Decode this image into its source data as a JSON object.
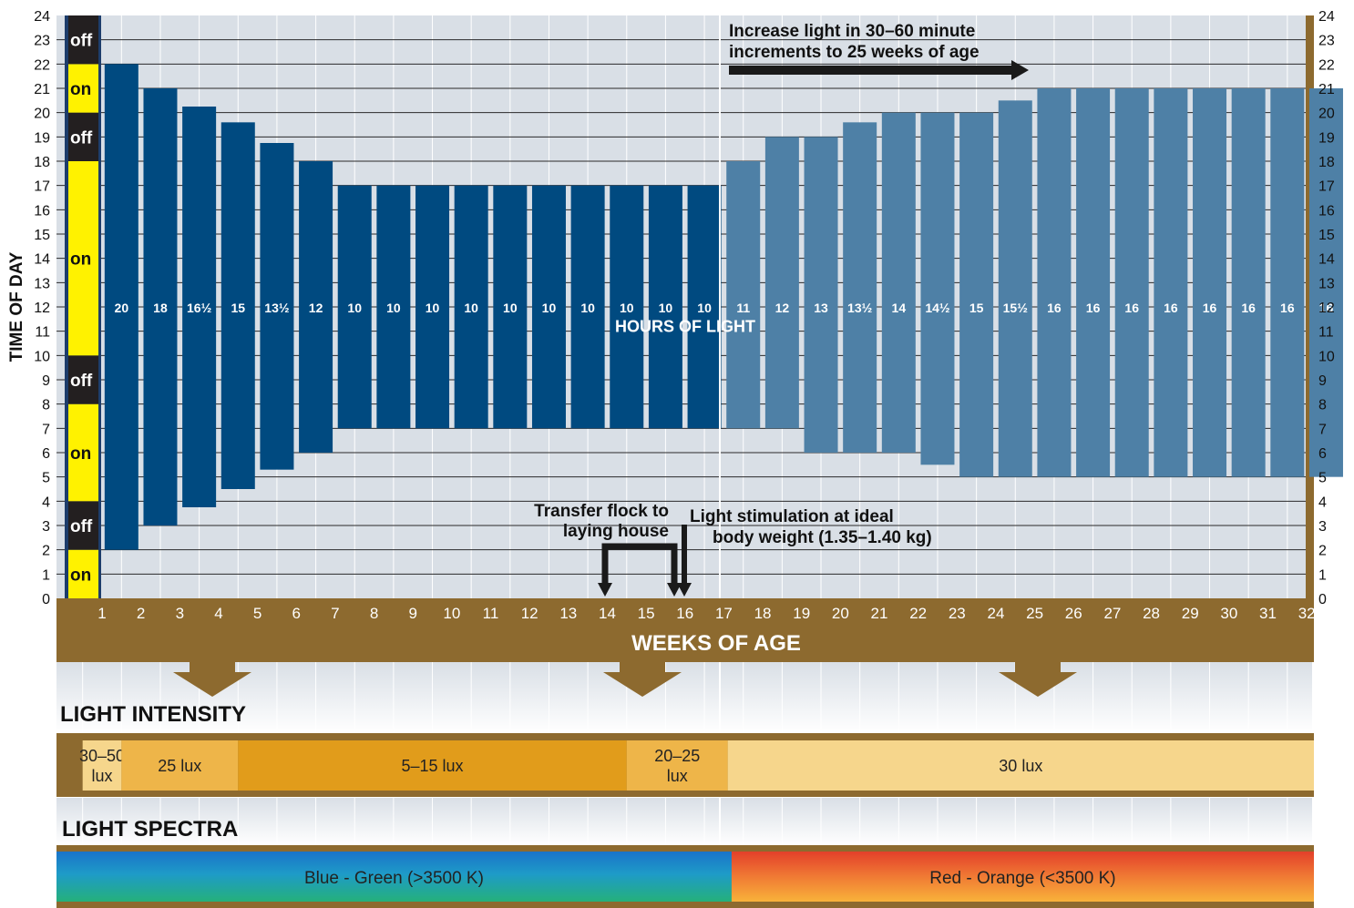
{
  "chart_data": {
    "type": "bar",
    "title": "",
    "ylabel": "TIME OF DAY",
    "xlabel": "WEEKS OF AGE",
    "ylim": [
      0,
      24
    ],
    "y_ticks": [
      "0",
      "1",
      "2",
      "3",
      "4",
      "5",
      "6",
      "7",
      "8",
      "9",
      "10",
      "11",
      "12",
      "13",
      "14",
      "15",
      "16",
      "17",
      "18",
      "19",
      "20",
      "21",
      "22",
      "23",
      "24"
    ],
    "categories": [
      "1",
      "2",
      "3",
      "4",
      "5",
      "6",
      "7",
      "8",
      "9",
      "10",
      "11",
      "12",
      "13",
      "14",
      "15",
      "16",
      "17",
      "18",
      "19",
      "20",
      "21",
      "22",
      "23",
      "24",
      "25",
      "26",
      "27",
      "28",
      "29",
      "30",
      "31",
      "32"
    ],
    "series": [
      {
        "name": "",
        "values": [
          {
            "week": 2,
            "start": 2,
            "end": 22,
            "label": "20"
          },
          {
            "week": 3,
            "start": 3,
            "end": 21,
            "label": "18"
          },
          {
            "week": 4,
            "start": 3.75,
            "end": 20.25,
            "label": "16½"
          },
          {
            "week": 5,
            "start": 4.5,
            "end": 19.6,
            "label": "15"
          },
          {
            "week": 6,
            "start": 5.3,
            "end": 18.75,
            "label": "13½"
          },
          {
            "week": 7,
            "start": 6,
            "end": 18,
            "label": "12"
          },
          {
            "week": 8,
            "start": 7,
            "end": 17,
            "label": "10"
          },
          {
            "week": 9,
            "start": 7,
            "end": 17,
            "label": "10"
          },
          {
            "week": 10,
            "start": 7,
            "end": 17,
            "label": "10"
          },
          {
            "week": 11,
            "start": 7,
            "end": 17,
            "label": "10"
          },
          {
            "week": 12,
            "start": 7,
            "end": 17,
            "label": "10"
          },
          {
            "week": 13,
            "start": 7,
            "end": 17,
            "label": "10"
          },
          {
            "week": 14,
            "start": 7,
            "end": 17,
            "label": "10"
          },
          {
            "week": 15,
            "start": 7,
            "end": 17,
            "label": "10"
          },
          {
            "week": 16,
            "start": 7,
            "end": 17,
            "label": "10"
          },
          {
            "week": 17,
            "start": 7,
            "end": 17,
            "label": "10"
          },
          {
            "week": 18,
            "start": 7,
            "end": 18,
            "label": "11"
          },
          {
            "week": 19,
            "start": 7,
            "end": 19,
            "label": "12"
          },
          {
            "week": 20,
            "start": 6,
            "end": 19,
            "label": "13"
          },
          {
            "week": 21,
            "start": 6,
            "end": 19.6,
            "label": "13½"
          },
          {
            "week": 22,
            "start": 6,
            "end": 20,
            "label": "14"
          },
          {
            "week": 23,
            "start": 5.5,
            "end": 20,
            "label": "14½"
          },
          {
            "week": 24,
            "start": 5,
            "end": 20,
            "label": "15"
          },
          {
            "week": 25,
            "start": 5,
            "end": 20.5,
            "label": "15½"
          },
          {
            "week": 26,
            "start": 5,
            "end": 21,
            "label": "16"
          },
          {
            "week": 27,
            "start": 5,
            "end": 21,
            "label": "16"
          },
          {
            "week": 28,
            "start": 5,
            "end": 21,
            "label": "16"
          },
          {
            "week": 29,
            "start": 5,
            "end": 21,
            "label": "16"
          },
          {
            "week": 30,
            "start": 5,
            "end": 21,
            "label": "16"
          },
          {
            "week": 31,
            "start": 5,
            "end": 21,
            "label": "16"
          },
          {
            "week": 32,
            "start": 5,
            "end": 21,
            "label": "16"
          },
          {
            "week": 33,
            "start": 5,
            "end": 21,
            "label": "16"
          }
        ]
      }
    ],
    "week1_schedule": [
      {
        "label": "on",
        "start": 0,
        "end": 2
      },
      {
        "label": "off",
        "start": 2,
        "end": 4
      },
      {
        "label": "on",
        "start": 4,
        "end": 8
      },
      {
        "label": "off",
        "start": 8,
        "end": 10
      },
      {
        "label": "on",
        "start": 10,
        "end": 18
      },
      {
        "label": "off",
        "start": 18,
        "end": 20
      },
      {
        "label": "on",
        "start": 20,
        "end": 22
      },
      {
        "label": "off",
        "start": 22,
        "end": 24
      }
    ],
    "bars_label": "HOURS OF LIGHT",
    "annotations": {
      "increase_line1": "Increase light in 30–60 minute",
      "increase_line2": "increments to 25 weeks of age",
      "transfer_line1": "Transfer flock to",
      "transfer_line2": "laying house",
      "stim_line1": "Light stimulation at ideal",
      "stim_line2": "body weight (1.35–1.40 kg)"
    },
    "light_intensity": {
      "title": "LIGHT INTENSITY",
      "segments": [
        {
          "line1": "30–50",
          "line2": "lux",
          "from_week": 0.5,
          "to_week": 1.5,
          "color": "#f6d68c"
        },
        {
          "line1": "25 lux",
          "line2": "",
          "from_week": 1.5,
          "to_week": 4.5,
          "color": "#eeb549"
        },
        {
          "line1": "5–15 lux",
          "line2": "",
          "from_week": 4.5,
          "to_week": 14.5,
          "color": "#e19c1b"
        },
        {
          "line1": "20–25",
          "line2": "lux",
          "from_week": 14.5,
          "to_week": 17.1,
          "color": "#eeb549"
        },
        {
          "line1": "30 lux",
          "line2": "",
          "from_week": 17.1,
          "to_week": 33.5,
          "color": "#f6d68c"
        }
      ]
    },
    "light_spectra": {
      "title": "LIGHT SPECTRA",
      "segments": [
        {
          "label": "Blue - Green (>3500 K)",
          "from_week": -0.7,
          "to_week": 17.2
        },
        {
          "label": "Red - Orange (<3500 K)",
          "from_week": 17.2,
          "to_week": 33.5
        }
      ]
    },
    "colors": {
      "dark_bar": "#004a80",
      "light_bar": "#4e80a6",
      "on": "#fff200",
      "off": "#231f20",
      "brown": "#8d6a2f",
      "grid_bg": "#d9dfe6"
    },
    "grid": true
  }
}
